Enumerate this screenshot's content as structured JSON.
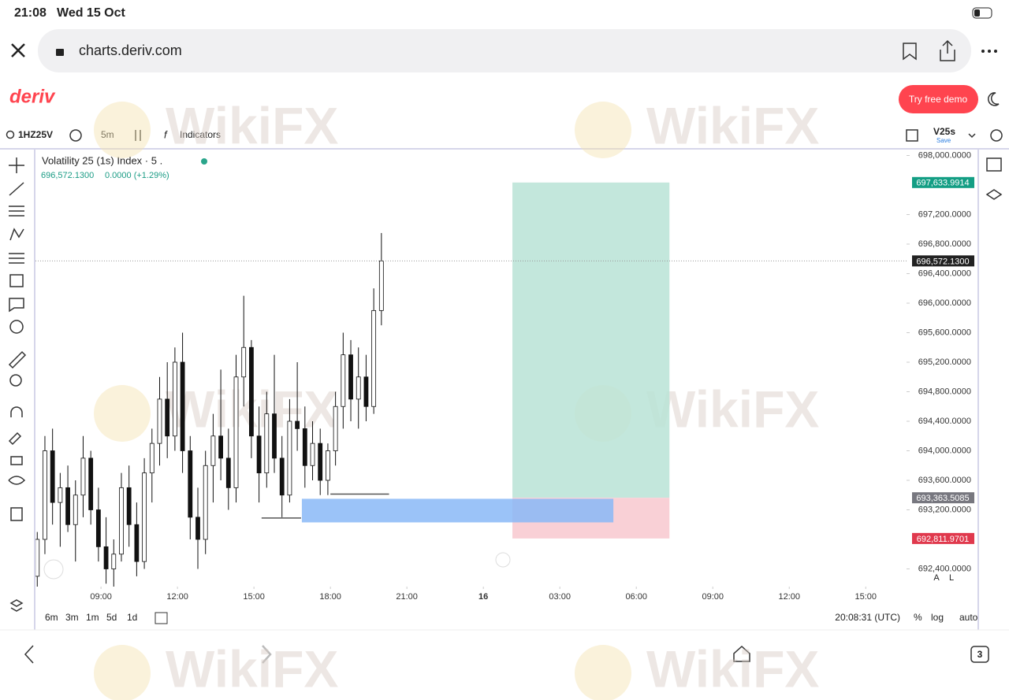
{
  "status_bar": {
    "time": "21:08",
    "date": "Wed 15 Oct"
  },
  "browser": {
    "url": "charts.deriv.com",
    "tabs": "3"
  },
  "header": {
    "logo": "deriv",
    "demo_button": "Try free demo"
  },
  "toolbar": {
    "symbol": "1HZ25V",
    "interval": "5m",
    "indicators": "Indicators",
    "template": "V25s",
    "template_sub": "Save"
  },
  "watermark": "WikiFX",
  "chart_data": {
    "type": "candlestick",
    "title": "Volatility 25 (1s) Index · 5 .",
    "price": "696,572.1300",
    "change": "0.0000 (+1.29%)",
    "x": [
      6.5,
      6.8,
      7.1,
      7.4,
      7.7,
      8.0,
      8.3,
      8.6,
      8.9,
      9.2,
      9.5,
      9.8,
      10.1,
      10.4,
      10.7,
      11.0,
      11.3,
      11.6,
      11.9,
      12.2,
      12.5,
      12.8,
      13.1,
      13.4,
      13.7,
      14.0,
      14.3,
      14.6,
      14.9,
      15.2,
      15.5,
      15.8,
      16.1,
      16.4,
      16.7,
      17.0,
      17.3,
      17.6,
      17.9,
      18.2,
      18.5,
      18.8,
      19.1,
      19.4,
      19.7,
      20.0
    ],
    "open": [
      692300,
      692800,
      694000,
      693300,
      693500,
      693000,
      693400,
      693900,
      693200,
      692700,
      692400,
      692600,
      693500,
      693000,
      692500,
      693700,
      694100,
      694700,
      694200,
      695200,
      694000,
      693100,
      692800,
      693800,
      694200,
      693900,
      693500,
      695000,
      695400,
      694200,
      693700,
      694500,
      693900,
      693400,
      694400,
      694300,
      693800,
      694100,
      693600,
      694000,
      694600,
      695300,
      694700,
      695000,
      694600,
      695900
    ],
    "high": [
      692900,
      694200,
      694300,
      693700,
      693800,
      693600,
      694200,
      694000,
      693500,
      693100,
      692800,
      693700,
      693800,
      693300,
      693900,
      694300,
      695000,
      695200,
      695400,
      695600,
      694200,
      693500,
      694000,
      694500,
      695100,
      694300,
      695300,
      696100,
      695500,
      694600,
      694800,
      695300,
      694200,
      694700,
      695200,
      694600,
      694400,
      694300,
      694100,
      694800,
      695600,
      695500,
      695400,
      695300,
      696200,
      696950
    ],
    "low": [
      692100,
      692600,
      693000,
      692700,
      692900,
      692500,
      693100,
      693000,
      692500,
      692200,
      692150,
      692500,
      692700,
      692300,
      692400,
      693300,
      693800,
      693900,
      694000,
      693700,
      692800,
      692400,
      692600,
      693300,
      693600,
      693200,
      693300,
      694600,
      693900,
      693300,
      693500,
      693700,
      693100,
      693300,
      694000,
      693500,
      693600,
      693400,
      693400,
      693800,
      694300,
      694400,
      694300,
      694400,
      694500,
      695700
    ],
    "close": [
      692800,
      694000,
      693300,
      693500,
      693000,
      693400,
      693900,
      693200,
      692700,
      692400,
      692600,
      693500,
      693000,
      692500,
      693700,
      694100,
      694700,
      694200,
      695200,
      694000,
      693100,
      692800,
      693800,
      694200,
      693900,
      693500,
      695000,
      695400,
      694200,
      693700,
      694500,
      693900,
      693400,
      694400,
      694300,
      693800,
      694100,
      693600,
      694000,
      694600,
      695300,
      694700,
      695000,
      694600,
      695900,
      696572.13
    ],
    "xlim": [
      6.43,
      40.6
    ],
    "xticks": [
      {
        "value": 9,
        "label": "09:00"
      },
      {
        "value": 12,
        "label": "12:00"
      },
      {
        "value": 15,
        "label": "15:00"
      },
      {
        "value": 18,
        "label": "18:00"
      },
      {
        "value": 21,
        "label": "21:00"
      },
      {
        "value": 24,
        "label": "16"
      },
      {
        "value": 27,
        "label": "03:00"
      },
      {
        "value": 30,
        "label": "06:00"
      },
      {
        "value": 33,
        "label": "09:00"
      },
      {
        "value": 36,
        "label": "12:00"
      },
      {
        "value": 39,
        "label": "15:00"
      }
    ],
    "ylim": [
      692160,
      698080
    ],
    "yticks": [
      {
        "value": 692400,
        "label": "692,400.0000"
      },
      {
        "value": 693200,
        "label": "693,200.0000"
      },
      {
        "value": 693600,
        "label": "693,600.0000"
      },
      {
        "value": 694000,
        "label": "694,000.0000"
      },
      {
        "value": 694400,
        "label": "694,400.0000"
      },
      {
        "value": 694800,
        "label": "694,800.0000"
      },
      {
        "value": 695200,
        "label": "695,200.0000"
      },
      {
        "value": 695600,
        "label": "695,600.0000"
      },
      {
        "value": 696000,
        "label": "696,000.0000"
      },
      {
        "value": 696400,
        "label": "696,400.0000"
      },
      {
        "value": 696800,
        "label": "696,800.0000"
      },
      {
        "value": 697200,
        "label": "697,200.0000"
      },
      {
        "value": 698000,
        "label": "698,000.0000"
      }
    ],
    "price_labels": [
      {
        "value": 697633.9914,
        "label": "697,633.9914",
        "color": "#139e84"
      },
      {
        "value": 696572.13,
        "label": "696,572.1300",
        "color": "#222222"
      },
      {
        "value": 693363.5085,
        "label": "693,363.5085",
        "color": "#77777f"
      },
      {
        "value": 692811.9701,
        "label": "692,811.9701",
        "color": "#e0394d"
      }
    ],
    "position": {
      "x_start": 25.14,
      "x_end": 31.3,
      "target": 697633.9914,
      "entry": 693363.5085,
      "stop": 692811.9701
    },
    "zone": {
      "x_start": 16.88,
      "x_end": 29.1,
      "top": 693350,
      "bottom": 693030,
      "color": "#8ab8f7"
    },
    "levels": [
      {
        "x_start": 15.3,
        "x_end": 16.85,
        "value": 693090
      },
      {
        "x_start": 18.0,
        "x_end": 20.3,
        "value": 693413
      }
    ]
  },
  "scale_buttons": [
    "A",
    "L"
  ],
  "range_bar": {
    "buttons": [
      "6m",
      "3m",
      "1m",
      "5d",
      "1d"
    ],
    "clock": "20:08:31 (UTC)",
    "options": [
      "%",
      "log",
      "auto"
    ]
  }
}
